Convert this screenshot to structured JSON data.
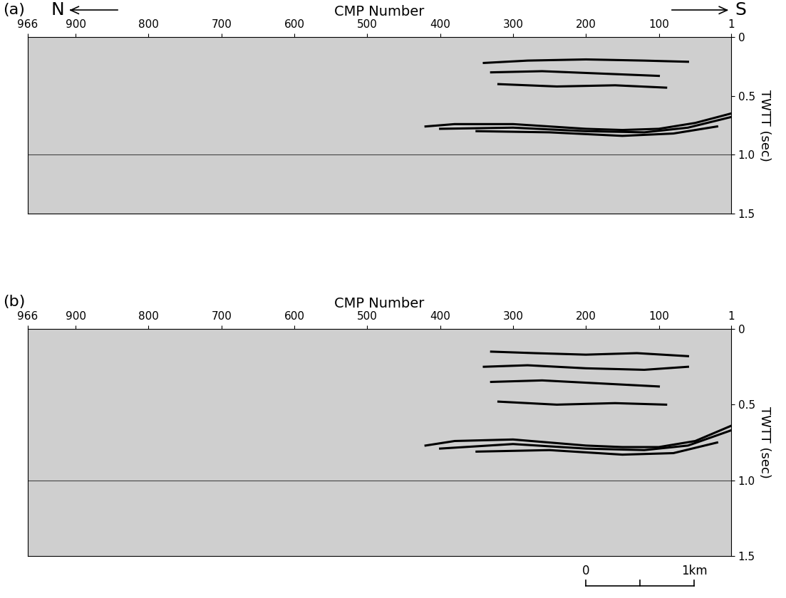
{
  "chart_data": [
    {
      "type": "line",
      "title": "(a)",
      "annotations": [
        "N",
        "S"
      ],
      "x_label": "CMP Number",
      "y_label": "TWTT (sec)",
      "xlim": [
        966,
        1
      ],
      "xticks": [
        966,
        900,
        800,
        700,
        600,
        500,
        400,
        300,
        200,
        100,
        1
      ],
      "ylim": [
        1.5,
        0
      ],
      "yticks": [
        0,
        0.5,
        {
          "value": 1,
          "label": "1.0"
        },
        1.5
      ],
      "reference_lines": [
        1.0
      ],
      "series": [
        {
          "color": "#000000",
          "x": [
            420,
            380,
            300,
            250,
            200,
            150,
            100,
            50,
            1
          ],
          "values": [
            0.76,
            0.74,
            0.74,
            0.76,
            0.78,
            0.79,
            0.78,
            0.73,
            0.65
          ]
        },
        {
          "color": "#000000",
          "x": [
            400,
            300,
            200,
            120,
            60,
            1
          ],
          "values": [
            0.78,
            0.77,
            0.8,
            0.81,
            0.77,
            0.68
          ]
        },
        {
          "color": "#000000",
          "x": [
            350,
            250,
            150,
            80,
            20
          ],
          "values": [
            0.8,
            0.81,
            0.84,
            0.82,
            0.76
          ]
        },
        {
          "color": "#000000",
          "x": [
            340,
            280,
            200,
            120,
            60
          ],
          "values": [
            0.22,
            0.2,
            0.19,
            0.2,
            0.21
          ]
        },
        {
          "color": "#000000",
          "x": [
            330,
            260,
            180,
            100
          ],
          "values": [
            0.3,
            0.29,
            0.31,
            0.33
          ]
        },
        {
          "color": "#000000",
          "x": [
            320,
            240,
            160,
            90
          ],
          "values": [
            0.4,
            0.42,
            0.41,
            0.43
          ]
        }
      ]
    },
    {
      "type": "line",
      "title": "(b)",
      "annotations": [
        "0",
        "1km"
      ],
      "x_label": "CMP Number",
      "y_label": "TWTT (sec)",
      "xlim": [
        966,
        1
      ],
      "xticks": [
        966,
        900,
        800,
        700,
        600,
        500,
        400,
        300,
        200,
        100,
        1
      ],
      "ylim": [
        1.5,
        0
      ],
      "yticks": [
        0,
        0.5,
        {
          "value": 1,
          "label": "1.0"
        },
        1.5
      ],
      "reference_lines": [
        1.0
      ],
      "series": [
        {
          "color": "#000000",
          "x": [
            420,
            380,
            300,
            250,
            200,
            150,
            100,
            50,
            1
          ],
          "values": [
            0.77,
            0.74,
            0.73,
            0.75,
            0.77,
            0.78,
            0.78,
            0.74,
            0.64
          ]
        },
        {
          "color": "#000000",
          "x": [
            400,
            300,
            200,
            120,
            60,
            1
          ],
          "values": [
            0.79,
            0.76,
            0.79,
            0.8,
            0.77,
            0.67
          ]
        },
        {
          "color": "#000000",
          "x": [
            350,
            250,
            150,
            80,
            20
          ],
          "values": [
            0.81,
            0.8,
            0.83,
            0.82,
            0.75
          ]
        },
        {
          "color": "#000000",
          "x": [
            330,
            270,
            200,
            130,
            60
          ],
          "values": [
            0.15,
            0.16,
            0.17,
            0.16,
            0.18
          ]
        },
        {
          "color": "#000000",
          "x": [
            340,
            280,
            200,
            120,
            60
          ],
          "values": [
            0.25,
            0.24,
            0.26,
            0.27,
            0.25
          ]
        },
        {
          "color": "#000000",
          "x": [
            330,
            260,
            180,
            100
          ],
          "values": [
            0.35,
            0.34,
            0.36,
            0.38
          ]
        },
        {
          "color": "#000000",
          "x": [
            320,
            240,
            160,
            90
          ],
          "values": [
            0.48,
            0.5,
            0.49,
            0.5
          ]
        }
      ]
    }
  ]
}
